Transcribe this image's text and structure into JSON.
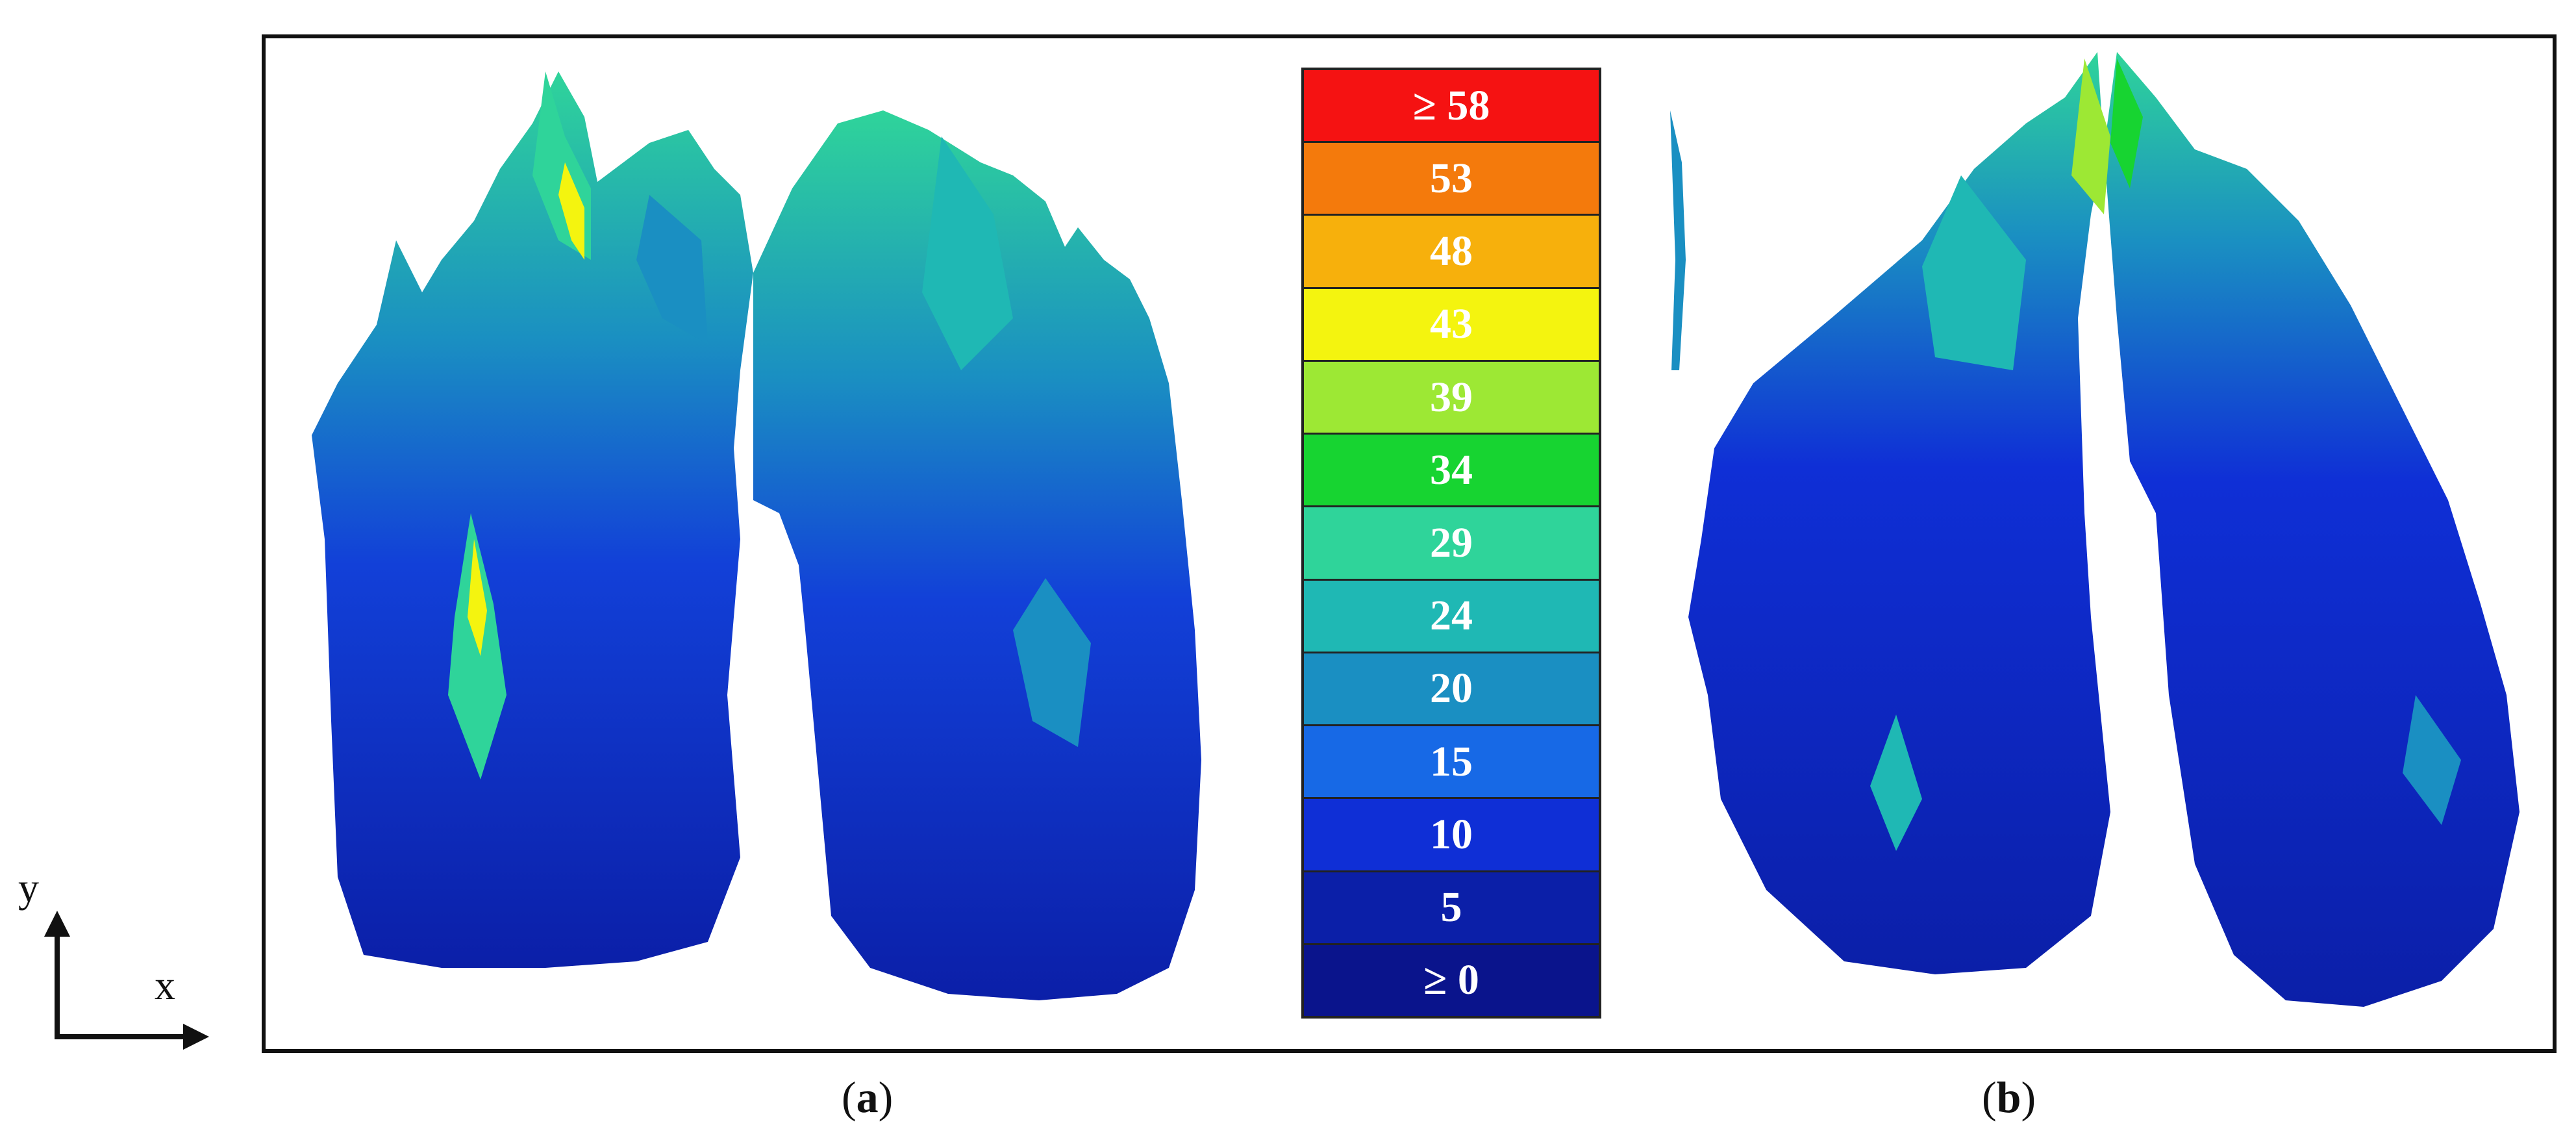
{
  "axes_indicator": {
    "y_label": "y",
    "x_label": "x"
  },
  "colorbar": {
    "levels": [
      {
        "label": "≥ 58",
        "color": "#f51212"
      },
      {
        "label": "53",
        "color": "#f47a0c"
      },
      {
        "label": "48",
        "color": "#f7b00c"
      },
      {
        "label": "43",
        "color": "#f4f40f"
      },
      {
        "label": "39",
        "color": "#9de834"
      },
      {
        "label": "34",
        "color": "#17d431"
      },
      {
        "label": "29",
        "color": "#2fd49a"
      },
      {
        "label": "24",
        "color": "#1fb8b4"
      },
      {
        "label": "20",
        "color": "#1a8fc2"
      },
      {
        "label": "15",
        "color": "#1769e6"
      },
      {
        "label": "10",
        "color": "#0f2fd6"
      },
      {
        "label": "5",
        "color": "#0b1fa8"
      },
      {
        "label": "≥ 0",
        "color": "#0a148c"
      }
    ]
  },
  "panels": [
    {
      "caption_letter": "a"
    },
    {
      "caption_letter": "b"
    }
  ]
}
